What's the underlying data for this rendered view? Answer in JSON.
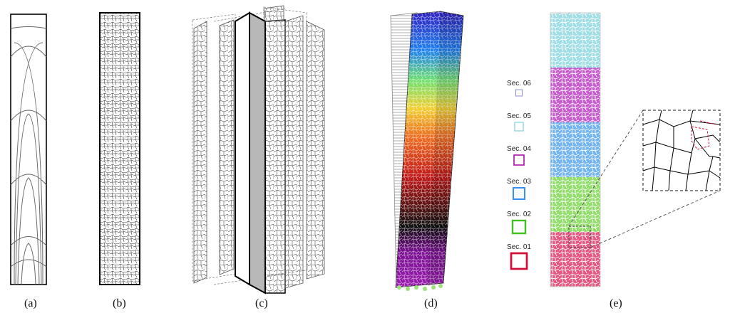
{
  "figure": {
    "captions": [
      "(a)",
      "(b)",
      "(c)",
      "(d)",
      "(e)"
    ]
  },
  "legend": {
    "sections": [
      {
        "label": "Sec. 06",
        "color": "#8f8fd8"
      },
      {
        "label": "Sec. 05",
        "color": "#8fd8e0"
      },
      {
        "label": "Sec. 04",
        "color": "#b020b0"
      },
      {
        "label": "Sec. 03",
        "color": "#3b8ff0"
      },
      {
        "label": "Sec. 02",
        "color": "#40c020"
      },
      {
        "label": "Sec. 01",
        "color": "#d0103a"
      }
    ]
  },
  "panel_e_colors": [
    "#e23a6b",
    "#7fd850",
    "#5aa8f0",
    "#c040c8",
    "#8fd8e0"
  ],
  "panel_d_colors": [
    "#9b1fb0",
    "#101010",
    "#c01818",
    "#f07020",
    "#f0d030",
    "#70e070",
    "#2080f0",
    "#3020c0"
  ]
}
